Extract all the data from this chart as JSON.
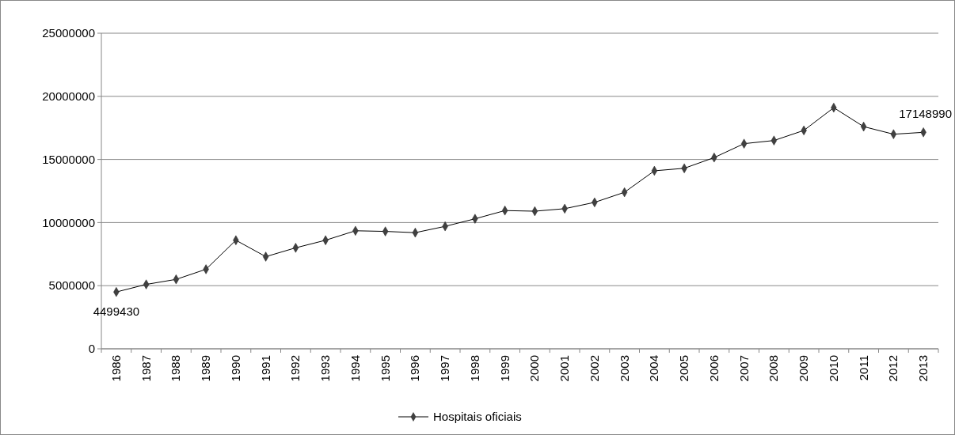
{
  "chart_data": {
    "type": "line",
    "categories": [
      "1986",
      "1987",
      "1988",
      "1989",
      "1990",
      "1991",
      "1992",
      "1993",
      "1994",
      "1995",
      "1996",
      "1997",
      "1998",
      "1999",
      "2000",
      "2001",
      "2002",
      "2003",
      "2004",
      "2005",
      "2006",
      "2007",
      "2008",
      "2009",
      "2010",
      "2011",
      "2012",
      "2013"
    ],
    "series": [
      {
        "name": "Hospitais oficiais",
        "color": "#000000",
        "values": [
          4499430,
          5100000,
          5500000,
          6300000,
          8600000,
          7300000,
          8000000,
          8600000,
          9350000,
          9300000,
          9200000,
          9700000,
          10300000,
          10950000,
          10900000,
          11100000,
          11600000,
          12400000,
          14100000,
          14300000,
          15150000,
          16250000,
          16500000,
          17300000,
          19100000,
          17600000,
          17000000,
          17148990
        ],
        "value_labels": [
          "4499430",
          null,
          null,
          null,
          null,
          null,
          null,
          null,
          null,
          null,
          null,
          null,
          null,
          null,
          null,
          null,
          null,
          null,
          null,
          null,
          null,
          null,
          null,
          null,
          null,
          null,
          null,
          "17148990"
        ]
      }
    ],
    "ylim": [
      0,
      25000000
    ],
    "yticks": [
      0,
      5000000,
      10000000,
      15000000,
      20000000,
      25000000
    ],
    "grid": "y",
    "legend": "bottom",
    "marker": "diamond",
    "line_style": "solid"
  }
}
